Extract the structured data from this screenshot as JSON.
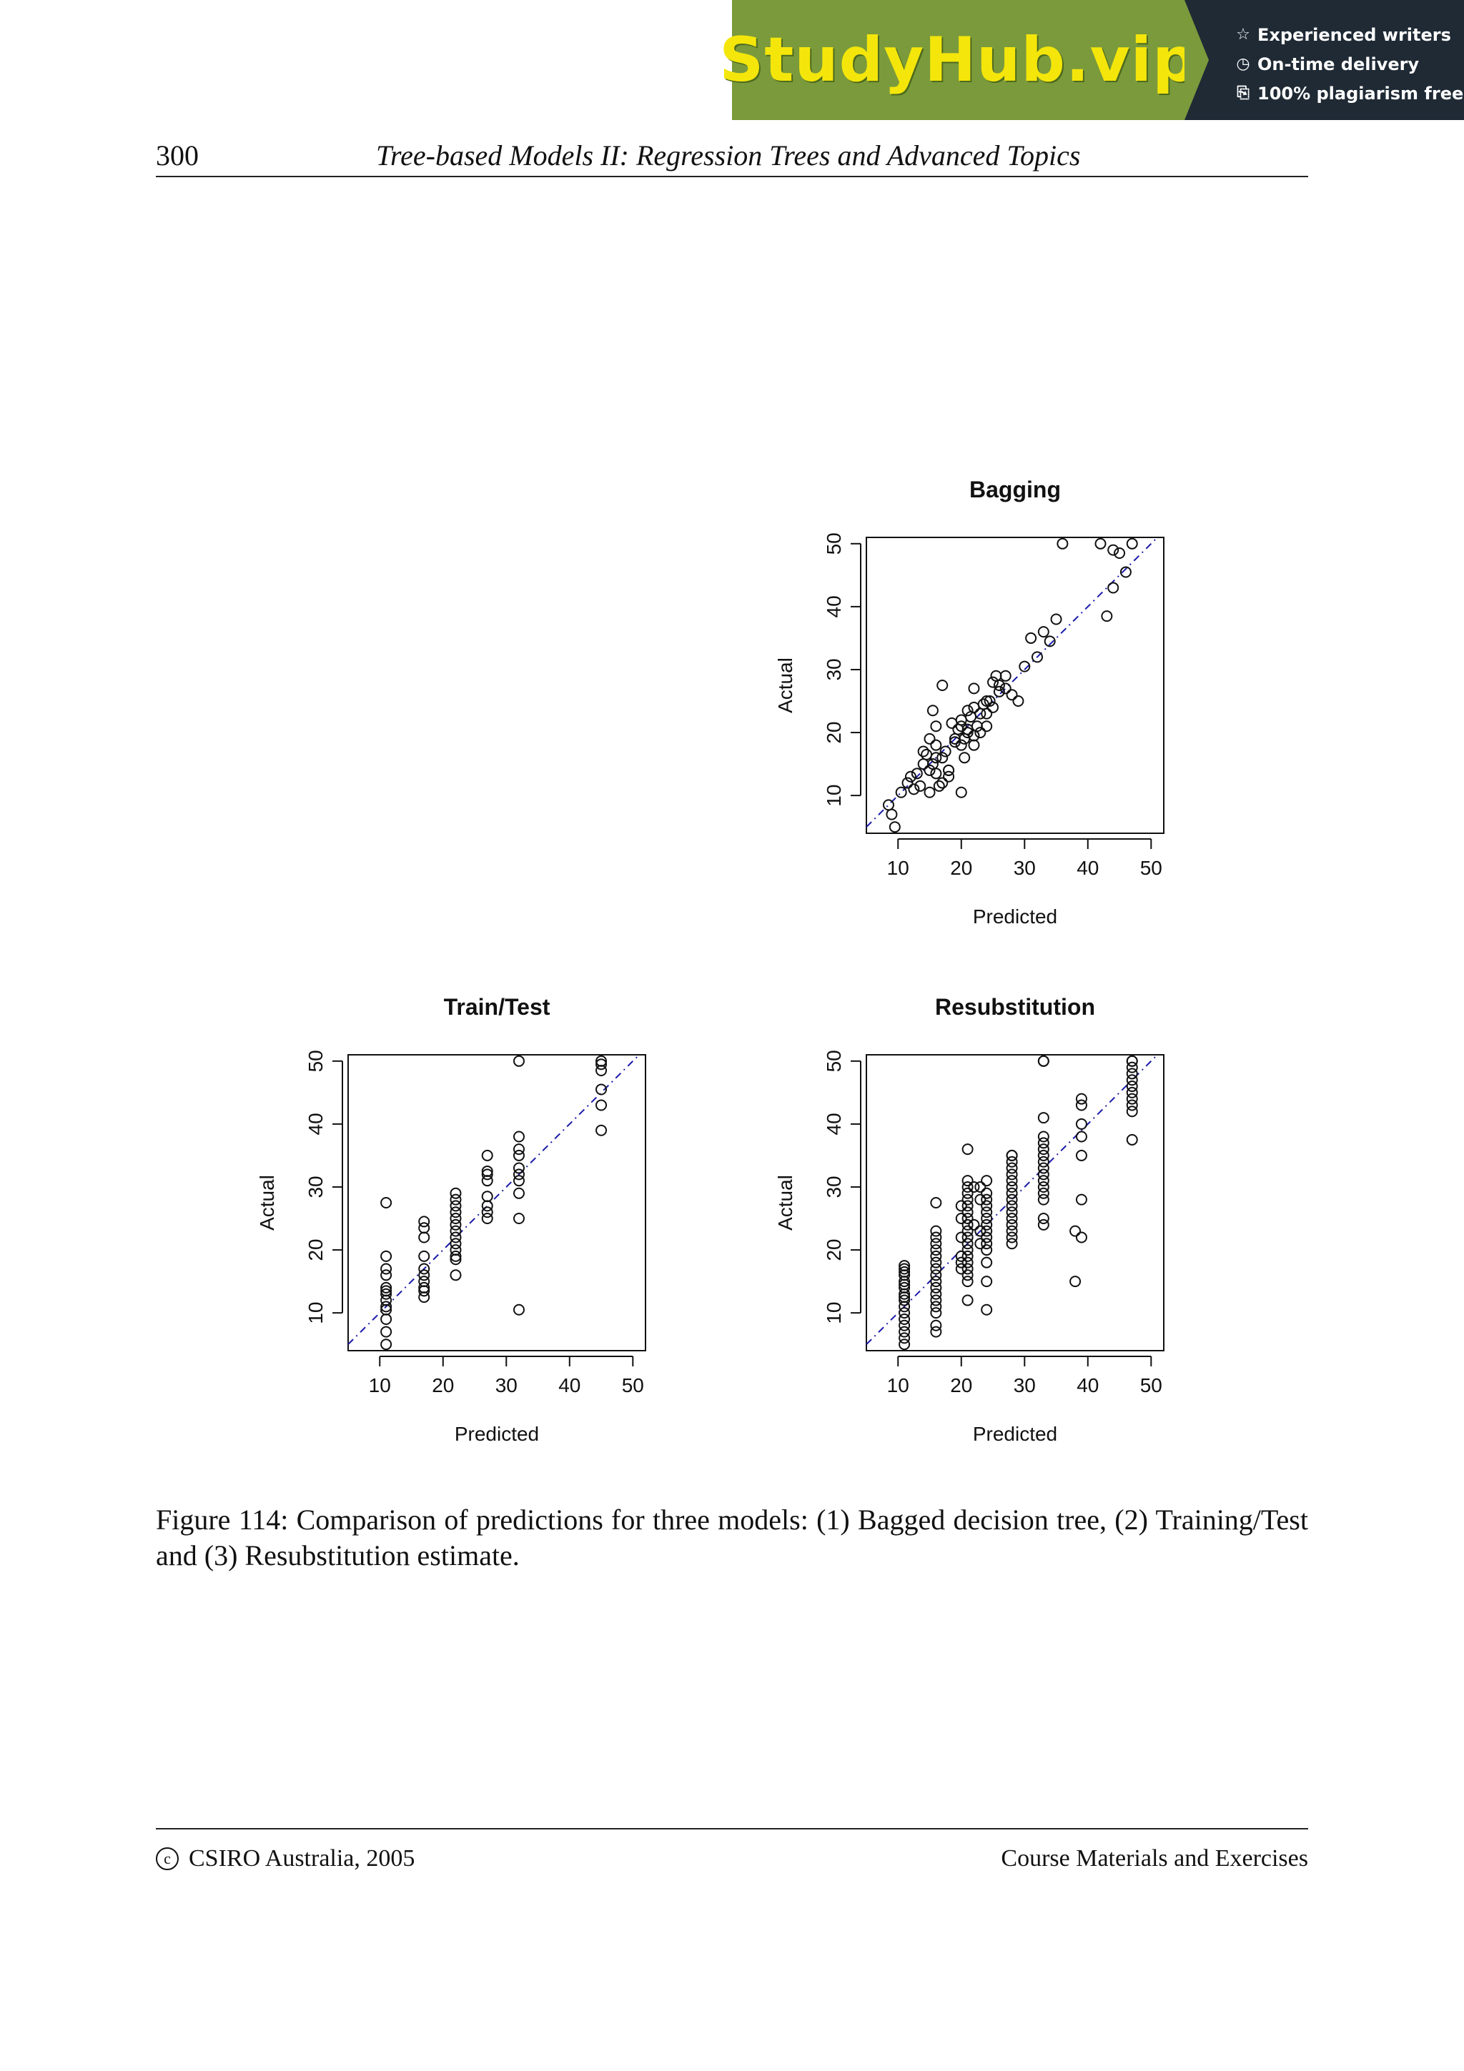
{
  "banner": {
    "brand": "StudyHub.vip",
    "perks": [
      {
        "icon": "star-icon",
        "glyph": "☆",
        "label": "Experienced writers"
      },
      {
        "icon": "clock-icon",
        "glyph": "◷",
        "label": "On-time delivery"
      },
      {
        "icon": "copy-icon",
        "glyph": "⎘",
        "label": "100% plagiarism free"
      }
    ]
  },
  "header": {
    "page_number": "300",
    "title": "Tree-based Models II: Regression Trees and Advanced Topics"
  },
  "caption": "Figure 114: Comparison of predictions for three models: (1) Bagged decision tree, (2) Training/Test and (3) Resubstitution estimate.",
  "footer": {
    "copyright_symbol": "c",
    "left": "CSIRO Australia, 2005",
    "right": "Course Materials and Exercises"
  },
  "colors": {
    "reference_line": "#1a1aaa",
    "points": "#111111"
  },
  "chart_data": [
    {
      "type": "scatter",
      "title": "Bagging",
      "xlabel": "Predicted",
      "ylabel": "Actual",
      "xlim": [
        5,
        52
      ],
      "ylim": [
        4,
        51
      ],
      "xticks": [
        10,
        20,
        30,
        40,
        50
      ],
      "yticks": [
        10,
        20,
        30,
        40,
        50
      ],
      "reference_line": "y = x",
      "x": [
        8.5,
        9,
        9.5,
        10.5,
        11.5,
        12,
        12.5,
        13,
        13.5,
        14,
        14.5,
        15,
        15,
        15.5,
        16,
        16,
        16.5,
        17,
        17.5,
        18,
        18.5,
        19,
        19.5,
        20,
        20.5,
        21,
        21.5,
        22,
        22,
        22.5,
        23,
        23.5,
        24,
        24.5,
        25,
        25.5,
        26,
        27,
        28,
        29,
        30,
        31,
        32,
        33,
        34,
        35,
        17,
        20,
        15,
        15.5,
        21,
        19,
        16,
        17,
        22,
        23,
        24,
        25,
        26,
        27,
        18,
        20,
        24,
        20.5,
        36,
        42,
        44,
        45,
        46,
        44,
        47,
        43,
        16,
        18,
        14,
        20,
        22,
        21
      ],
      "y": [
        8.5,
        7,
        5,
        10.5,
        12,
        13,
        11,
        13.5,
        11.5,
        17,
        16.5,
        14,
        19,
        15,
        18,
        16,
        11.5,
        16,
        17,
        14,
        21.5,
        19,
        20.5,
        22,
        19,
        20,
        22.5,
        24,
        19.5,
        21,
        23,
        24.5,
        25,
        25,
        28,
        29,
        27.5,
        27,
        26,
        25,
        30.5,
        35,
        32,
        36,
        34.5,
        38,
        27.5,
        10.5,
        10.5,
        23.5,
        23.5,
        18.5,
        13.5,
        12,
        18,
        20,
        23,
        24,
        26.5,
        29,
        13,
        18,
        21,
        16,
        50,
        50,
        49,
        48.5,
        45.5,
        43,
        50,
        38.5,
        21,
        14,
        15,
        21,
        27,
        20.5
      ]
    },
    {
      "type": "scatter",
      "title": "Train/Test",
      "xlabel": "Predicted",
      "ylabel": "Actual",
      "xlim": [
        5,
        52
      ],
      "ylim": [
        4,
        51
      ],
      "xticks": [
        10,
        20,
        30,
        40,
        50
      ],
      "yticks": [
        10,
        20,
        30,
        40,
        50
      ],
      "reference_line": "y = x",
      "x": [
        11,
        11,
        11,
        11,
        11,
        11,
        11,
        11,
        11,
        11,
        11,
        11,
        11,
        17,
        17,
        17,
        17,
        17,
        17,
        17,
        17,
        17,
        17,
        22,
        22,
        22,
        22,
        22,
        22,
        22,
        22,
        22,
        22,
        22,
        22,
        22,
        27,
        27,
        27,
        27,
        27,
        27,
        27,
        27,
        32,
        32,
        32,
        32,
        32,
        32,
        32,
        32,
        32,
        32,
        45,
        45,
        45,
        45,
        45,
        45
      ],
      "y": [
        5,
        7,
        9,
        10.5,
        11,
        12,
        13,
        13.5,
        14,
        16,
        17,
        19,
        27.5,
        12.5,
        13.5,
        14,
        15,
        16,
        17,
        19,
        22,
        23.5,
        24.5,
        16,
        18.5,
        19,
        20,
        21,
        22,
        23,
        24,
        25,
        26,
        27,
        28,
        29,
        25,
        26,
        27,
        28.5,
        31,
        32,
        32.5,
        35,
        10.5,
        25,
        29,
        31,
        32,
        33,
        35,
        36,
        38,
        50,
        39,
        43,
        45.5,
        48.5,
        49.5,
        50
      ]
    },
    {
      "type": "scatter",
      "title": "Resubstitution",
      "xlabel": "Predicted",
      "ylabel": "Actual",
      "xlim": [
        5,
        52
      ],
      "ylim": [
        4,
        51
      ],
      "xticks": [
        10,
        20,
        30,
        40,
        50
      ],
      "yticks": [
        10,
        20,
        30,
        40,
        50
      ],
      "reference_line": "y = x",
      "x": [
        11,
        11,
        11,
        11,
        11,
        11,
        11,
        11,
        11,
        11,
        11,
        11,
        11,
        11,
        11,
        11,
        11,
        16,
        16,
        16,
        16,
        16,
        16,
        16,
        16,
        16,
        16,
        16,
        16,
        16,
        16,
        16,
        16,
        16,
        21,
        21,
        21,
        21,
        21,
        21,
        21,
        21,
        21,
        21,
        21,
        21,
        21,
        21,
        21,
        21,
        21,
        21,
        21,
        20,
        20,
        20,
        20,
        20,
        20,
        22,
        22,
        24,
        24,
        24,
        24,
        24,
        24,
        24,
        24,
        24,
        24,
        24,
        24,
        24,
        24,
        23,
        23,
        23,
        23,
        28,
        28,
        28,
        28,
        28,
        28,
        28,
        28,
        28,
        28,
        28,
        28,
        28,
        28,
        28,
        28,
        33,
        33,
        33,
        33,
        33,
        33,
        33,
        33,
        33,
        33,
        33,
        33,
        33,
        33,
        33,
        33,
        38,
        38,
        39,
        39,
        39,
        39,
        39,
        39,
        39,
        47,
        47,
        47,
        47,
        47,
        47,
        47,
        47,
        47,
        47,
        47
      ],
      "y": [
        5,
        6,
        7,
        8,
        9,
        10,
        11,
        12,
        12.5,
        13,
        14,
        14.5,
        15,
        16,
        16.5,
        17,
        17.5,
        7,
        8,
        10,
        11,
        12,
        13,
        14,
        15,
        16,
        17,
        18,
        19,
        20,
        21,
        22,
        23,
        27.5,
        12,
        15,
        16,
        17,
        18,
        19,
        20,
        21,
        22,
        23,
        24,
        25,
        26,
        27,
        28,
        29,
        30,
        31,
        36,
        17,
        18,
        19,
        22,
        25,
        27,
        24,
        30,
        10.5,
        15,
        18,
        20,
        21,
        22,
        23,
        24,
        25,
        26,
        27,
        28,
        29,
        31,
        30,
        28,
        21,
        23,
        21,
        22,
        23,
        24,
        25,
        26,
        27,
        28,
        29,
        30,
        31,
        32,
        33,
        34,
        35,
        35,
        24,
        25,
        28,
        29,
        30,
        31,
        32,
        33,
        34,
        35,
        36,
        37,
        38,
        41,
        50,
        50,
        15,
        23,
        22,
        28,
        35,
        38,
        40,
        43,
        44,
        37.5,
        42,
        43,
        44,
        45,
        46,
        47,
        48,
        49,
        50,
        50
      ]
    }
  ]
}
